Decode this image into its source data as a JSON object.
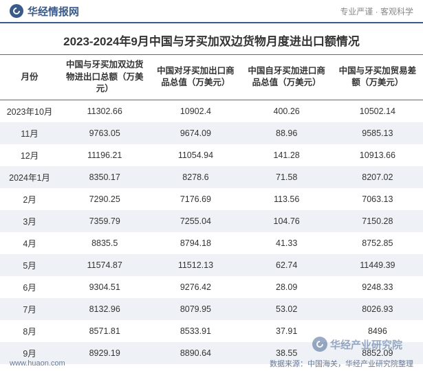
{
  "header": {
    "logo_text": "华经情报网",
    "slogan": "专业严谨 · 客观科学"
  },
  "title": "2023-2024年9月中国与牙买加双边货物月度进出口额情况",
  "table": {
    "columns": [
      "月份",
      "中国与牙买加双边货物进出口总额（万美元）",
      "中国对牙买加出口商品总值（万美元）",
      "中国自牙买加进口商品总值（万美元）",
      "中国与牙买加贸易差额（万美元）"
    ],
    "rows": [
      [
        "2023年10月",
        "11302.66",
        "10902.4",
        "400.26",
        "10502.14"
      ],
      [
        "11月",
        "9763.05",
        "9674.09",
        "88.96",
        "9585.13"
      ],
      [
        "12月",
        "11196.21",
        "11054.94",
        "141.28",
        "10913.66"
      ],
      [
        "2024年1月",
        "8350.17",
        "8278.6",
        "71.58",
        "8207.02"
      ],
      [
        "2月",
        "7290.25",
        "7176.69",
        "113.56",
        "7063.13"
      ],
      [
        "3月",
        "7359.79",
        "7255.04",
        "104.76",
        "7150.28"
      ],
      [
        "4月",
        "8835.5",
        "8794.18",
        "41.33",
        "8752.85"
      ],
      [
        "5月",
        "11574.87",
        "11512.13",
        "62.74",
        "11449.39"
      ],
      [
        "6月",
        "9304.51",
        "9276.42",
        "28.09",
        "9248.33"
      ],
      [
        "7月",
        "8132.96",
        "8079.95",
        "53.02",
        "8026.93"
      ],
      [
        "8月",
        "8571.81",
        "8533.91",
        "37.91",
        "8496"
      ],
      [
        "9月",
        "8929.19",
        "8890.64",
        "38.55",
        "8852.09"
      ]
    ]
  },
  "footer": {
    "url": "www.huaon.com",
    "source": "数据来源：中国海关，华经产业研究院整理"
  },
  "watermark": {
    "text": "华经产业研究院"
  },
  "colors": {
    "primary": "#3a5a8a",
    "row_even_bg": "#eef1f5",
    "row_odd_bg": "#ffffff",
    "text": "#333333",
    "footer_text": "#6a7a95"
  }
}
